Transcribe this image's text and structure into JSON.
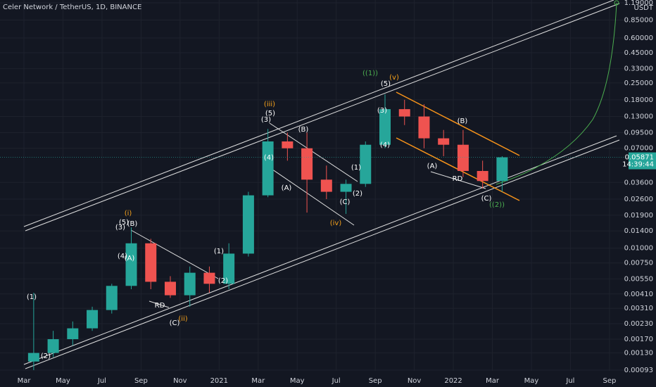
{
  "chart_data": {
    "type": "candlestick",
    "title": "Celer Network / TetherUS, 1D, BINANCE",
    "y_unit": "USDT",
    "log_scale": true,
    "grid": true,
    "up_color": "#26a69a",
    "down_color": "#ef5350",
    "categories": [
      "Mar",
      null,
      "May",
      null,
      "Jul",
      null,
      "Sep",
      null,
      "Nov",
      null,
      "2021",
      null,
      "Mar",
      null,
      "May",
      null,
      "Jul",
      null,
      "Sep",
      null,
      "Nov",
      null,
      "2022",
      null,
      "Mar",
      null,
      "May",
      null,
      "Jul",
      null,
      "Sep"
    ],
    "open": [
      0.0011,
      0.0013,
      0.0017,
      0.0021,
      0.003,
      0.0048,
      0.011,
      0.0052,
      0.004,
      0.0062,
      0.005,
      0.009,
      0.028,
      0.08,
      0.07,
      0.038,
      0.03,
      0.035,
      0.075,
      0.15,
      0.13,
      0.085,
      0.075,
      0.045,
      0.037,
      null,
      null,
      null,
      null,
      null,
      null
    ],
    "high": [
      0.0042,
      0.002,
      0.0024,
      0.0032,
      0.005,
      0.015,
      0.012,
      0.0058,
      0.007,
      0.007,
      0.011,
      0.03,
      0.102,
      0.095,
      0.095,
      0.05,
      0.038,
      0.08,
      0.2,
      0.18,
      0.165,
      0.1,
      0.1,
      0.055,
      0.06,
      null,
      null,
      null,
      null,
      null,
      null
    ],
    "low": [
      0.00093,
      0.0012,
      0.0015,
      0.002,
      0.0028,
      0.0045,
      0.0045,
      0.0038,
      0.0032,
      0.0042,
      0.0045,
      0.0085,
      0.027,
      0.055,
      0.02,
      0.026,
      0.0195,
      0.033,
      0.07,
      0.11,
      0.07,
      0.06,
      0.04,
      0.032,
      0.03,
      null,
      null,
      null,
      null,
      null,
      null
    ],
    "close": [
      0.0013,
      0.0017,
      0.0021,
      0.003,
      0.0048,
      0.011,
      0.0052,
      0.004,
      0.0062,
      0.005,
      0.009,
      0.028,
      0.08,
      0.07,
      0.038,
      0.03,
      0.035,
      0.075,
      0.15,
      0.13,
      0.085,
      0.075,
      0.045,
      0.037,
      0.05871,
      null,
      null,
      null,
      null,
      null,
      null
    ],
    "ylim": [
      0.000918,
      1.257
    ],
    "yticks": [
      {
        "value": 1.19,
        "label": "1.19000"
      },
      {
        "value": 0.85,
        "label": "0.85000"
      },
      {
        "value": 0.6,
        "label": "0.60000"
      },
      {
        "value": 0.45,
        "label": "0.45000"
      },
      {
        "value": 0.33,
        "label": "0.33000"
      },
      {
        "value": 0.25,
        "label": "0.25000"
      },
      {
        "value": 0.18,
        "label": "0.18000"
      },
      {
        "value": 0.13,
        "label": "0.13000"
      },
      {
        "value": 0.095,
        "label": "0.09500"
      },
      {
        "value": 0.07,
        "label": "0.07000"
      },
      {
        "value": 0.036,
        "label": "0.03600"
      },
      {
        "value": 0.026,
        "label": "0.02600"
      },
      {
        "value": 0.019,
        "label": "0.01900"
      },
      {
        "value": 0.014,
        "label": "0.01400"
      },
      {
        "value": 0.01,
        "label": "0.01000"
      },
      {
        "value": 0.0075,
        "label": "0.00750"
      },
      {
        "value": 0.0055,
        "label": "0.00550"
      },
      {
        "value": 0.0041,
        "label": "0.00410"
      },
      {
        "value": 0.0031,
        "label": "0.00310"
      },
      {
        "value": 0.0023,
        "label": "0.00230"
      },
      {
        "value": 0.0017,
        "label": "0.00170"
      },
      {
        "value": 0.0013,
        "label": "0.00130"
      },
      {
        "value": 0.00093,
        "label": "0.00093"
      }
    ],
    "last_price": {
      "value": 0.05871,
      "label": "0.05871"
    },
    "countdown": "14:39:44",
    "annotations": [
      {
        "text": "(1)",
        "color": "#ffffff"
      },
      {
        "text": "(2)",
        "color": "#ffffff"
      },
      {
        "text": "(i)",
        "color": "#f7a21b"
      },
      {
        "text": "(5)",
        "color": "#ffffff"
      },
      {
        "text": "(3)",
        "color": "#ffffff"
      },
      {
        "text": "(B)",
        "color": "#ffffff"
      },
      {
        "text": "(4)",
        "color": "#ffffff"
      },
      {
        "text": "(A)",
        "color": "#ffffff"
      },
      {
        "text": "(ii)",
        "color": "#f7a21b"
      },
      {
        "text": "(C)",
        "color": "#ffffff"
      },
      {
        "text": "RD",
        "color": "#ffffff"
      },
      {
        "text": "(1)",
        "color": "#ffffff"
      },
      {
        "text": "(2)",
        "color": "#ffffff"
      },
      {
        "text": "(iii)",
        "color": "#f7a21b"
      },
      {
        "text": "(5)",
        "color": "#ffffff"
      },
      {
        "text": "(3)",
        "color": "#ffffff"
      },
      {
        "text": "(B)",
        "color": "#ffffff"
      },
      {
        "text": "(4)",
        "color": "#ffffff"
      },
      {
        "text": "(A)",
        "color": "#ffffff"
      },
      {
        "text": "(1)",
        "color": "#ffffff"
      },
      {
        "text": "(2)",
        "color": "#ffffff"
      },
      {
        "text": "(C)",
        "color": "#ffffff"
      },
      {
        "text": "(iv)",
        "color": "#f7a21b"
      },
      {
        "text": "((1))",
        "color": "#4caf50"
      },
      {
        "text": "(v)",
        "color": "#f7a21b"
      },
      {
        "text": "(5)",
        "color": "#ffffff"
      },
      {
        "text": "(3)",
        "color": "#ffffff"
      },
      {
        "text": "(4)",
        "color": "#ffffff"
      },
      {
        "text": "(B)",
        "color": "#ffffff"
      },
      {
        "text": "(A)",
        "color": "#ffffff"
      },
      {
        "text": "RD",
        "color": "#ffffff"
      },
      {
        "text": "(C)",
        "color": "#ffffff"
      },
      {
        "text": "((2))",
        "color": "#4caf50"
      }
    ]
  }
}
